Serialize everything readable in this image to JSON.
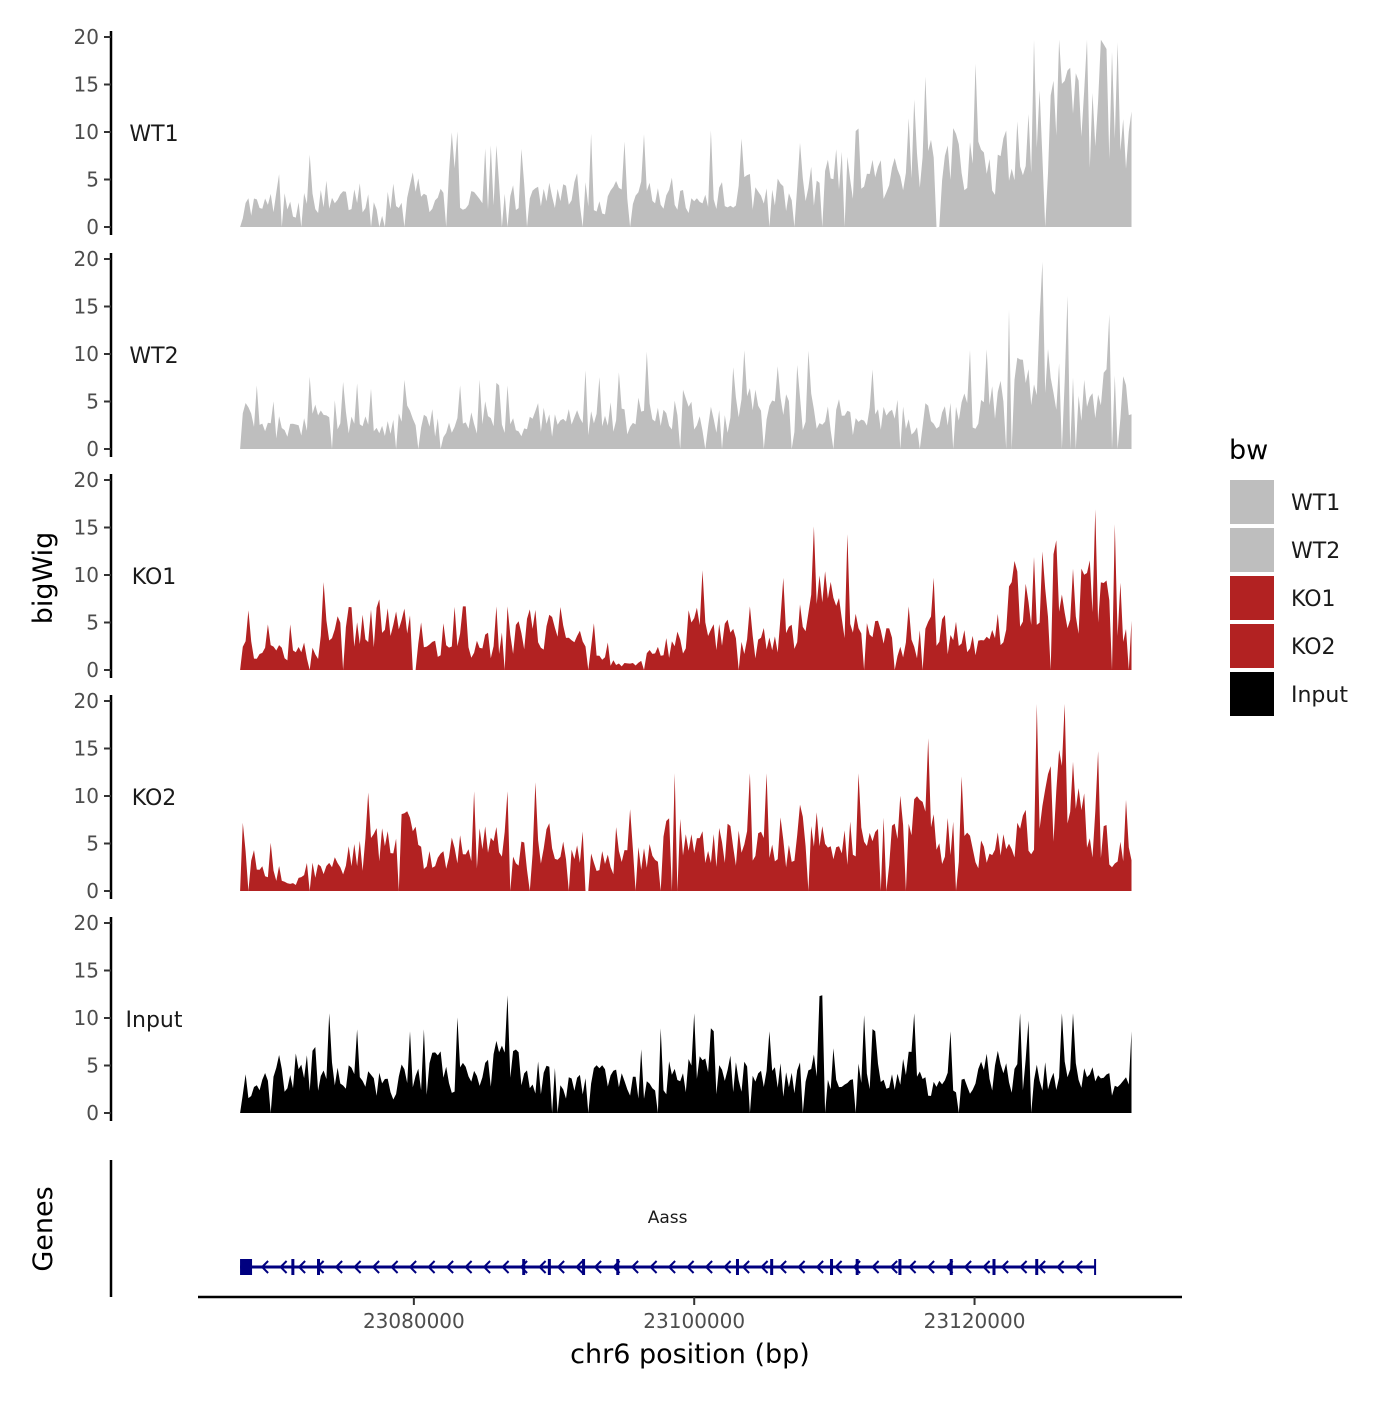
{
  "chart_data": {
    "type": "area",
    "title": "",
    "ylabel": "bigWig",
    "xlabel": "chr6 position (bp)",
    "ylim": [
      0,
      20
    ],
    "y_ticks": [
      0,
      5,
      10,
      15,
      20
    ],
    "xlim": [
      23064600,
      23134800
    ],
    "x_ticks": [
      {
        "value": 23080000,
        "label": "23080000"
      },
      {
        "value": 23100000,
        "label": "23100000"
      },
      {
        "value": 23120000,
        "label": "23120000"
      }
    ],
    "x_start": 23067600,
    "x_end": 23131200,
    "legend": {
      "title": "bw",
      "position": "right",
      "items": [
        {
          "label": "WT1",
          "color": "#BEBEBE"
        },
        {
          "label": "WT2",
          "color": "#BEBEBE"
        },
        {
          "label": "KO1",
          "color": "#B22222"
        },
        {
          "label": "KO2",
          "color": "#B22222"
        },
        {
          "label": "Input",
          "color": "#000000"
        }
      ]
    },
    "series": [
      {
        "name": "WT1",
        "color": "#BEBEBE",
        "values": [
          1,
          3,
          2,
          3,
          5,
          2,
          3,
          4,
          2,
          3,
          3,
          4,
          3,
          2,
          4,
          3,
          5,
          4,
          3,
          4,
          5,
          4,
          3,
          4,
          4,
          5,
          4,
          3,
          5,
          4,
          4,
          5,
          6,
          4,
          3,
          5,
          4,
          4,
          5,
          3,
          5,
          4,
          3,
          4,
          5,
          4,
          3,
          5,
          4,
          4,
          4,
          3,
          4,
          5,
          4,
          6,
          8,
          7,
          9,
          7,
          6,
          6,
          5,
          7,
          8,
          9,
          11,
          10,
          9,
          8,
          7,
          8,
          9,
          10,
          12,
          13,
          13,
          14,
          13,
          12,
          10,
          9,
          10,
          10
        ]
      },
      {
        "name": "WT2",
        "color": "#BEBEBE",
        "values": [
          5,
          3,
          3,
          2,
          3,
          2,
          3,
          4,
          3,
          2,
          4,
          3,
          3,
          2,
          3,
          3,
          4,
          5,
          3,
          2,
          3,
          3,
          3,
          4,
          3,
          3,
          2,
          3,
          4,
          3,
          3,
          4,
          4,
          3,
          4,
          4,
          3,
          4,
          5,
          4,
          4,
          5,
          5,
          4,
          4,
          4,
          4,
          5,
          5,
          4,
          4,
          5,
          4,
          5,
          4,
          4,
          4,
          3,
          3,
          4,
          4,
          4,
          4,
          3,
          4,
          5,
          4,
          4,
          5,
          5,
          5,
          6,
          8,
          9,
          10,
          11,
          10,
          8,
          7,
          6,
          6,
          7,
          6,
          5
        ]
      },
      {
        "name": "KO1",
        "color": "#B22222",
        "values": [
          2,
          3,
          2,
          2,
          2,
          2,
          3,
          2,
          5,
          6,
          5,
          5,
          5,
          6,
          6,
          5,
          5,
          4,
          3,
          2,
          3,
          3,
          3,
          3,
          3,
          3,
          4,
          5,
          5,
          5,
          5,
          4,
          3,
          2,
          1,
          1,
          0.5,
          1,
          2,
          3,
          3,
          4,
          5,
          5,
          5,
          4,
          4,
          3,
          3,
          4,
          4,
          5,
          5,
          7,
          8,
          8,
          7,
          7,
          7,
          5,
          4,
          3,
          3,
          3,
          4,
          5,
          4,
          4,
          3,
          3,
          4,
          6,
          9,
          10,
          11,
          12,
          12,
          10,
          9,
          9,
          8,
          8,
          7,
          4
        ]
      },
      {
        "name": "KO2",
        "color": "#B22222",
        "values": [
          3,
          4,
          3,
          2,
          2,
          1,
          2,
          3,
          3,
          3,
          4,
          4,
          5,
          5,
          6,
          7,
          6,
          5,
          4,
          4,
          5,
          5,
          5,
          6,
          5,
          5,
          4,
          5,
          6,
          6,
          6,
          5,
          5,
          4,
          4,
          3,
          4,
          4,
          5,
          5,
          6,
          6,
          6,
          5,
          5,
          6,
          6,
          6,
          6,
          6,
          6,
          6,
          7,
          7,
          6,
          6,
          6,
          6,
          6,
          5,
          6,
          7,
          9,
          9,
          8,
          7,
          6,
          6,
          5,
          5,
          5,
          5,
          6,
          8,
          10,
          12,
          13,
          12,
          10,
          9,
          7,
          6,
          5,
          4
        ]
      },
      {
        "name": "Input",
        "color": "#000000",
        "values": [
          4,
          3,
          4,
          4,
          5,
          5,
          5,
          6,
          5,
          5,
          5,
          4,
          4,
          4,
          3,
          4,
          4,
          4,
          5,
          5,
          5,
          4,
          4,
          5,
          6,
          6,
          6,
          5,
          4,
          4,
          3,
          4,
          4,
          4,
          4,
          4,
          3,
          3,
          3,
          4,
          5,
          5,
          5,
          5,
          4,
          4,
          5,
          5,
          4,
          4,
          4,
          4,
          4,
          5,
          6,
          6,
          5,
          5,
          5,
          4,
          4,
          4,
          5,
          5,
          4,
          4,
          4,
          4,
          4,
          5,
          5,
          5,
          5,
          5,
          4,
          5,
          5,
          5,
          5,
          4,
          4,
          4,
          4,
          4
        ]
      }
    ],
    "gene_track": {
      "ylabel": "Genes",
      "gene": {
        "name": "Aass",
        "start": 23067600,
        "end": 23128600,
        "strand": "-",
        "color": "#000080"
      }
    }
  }
}
